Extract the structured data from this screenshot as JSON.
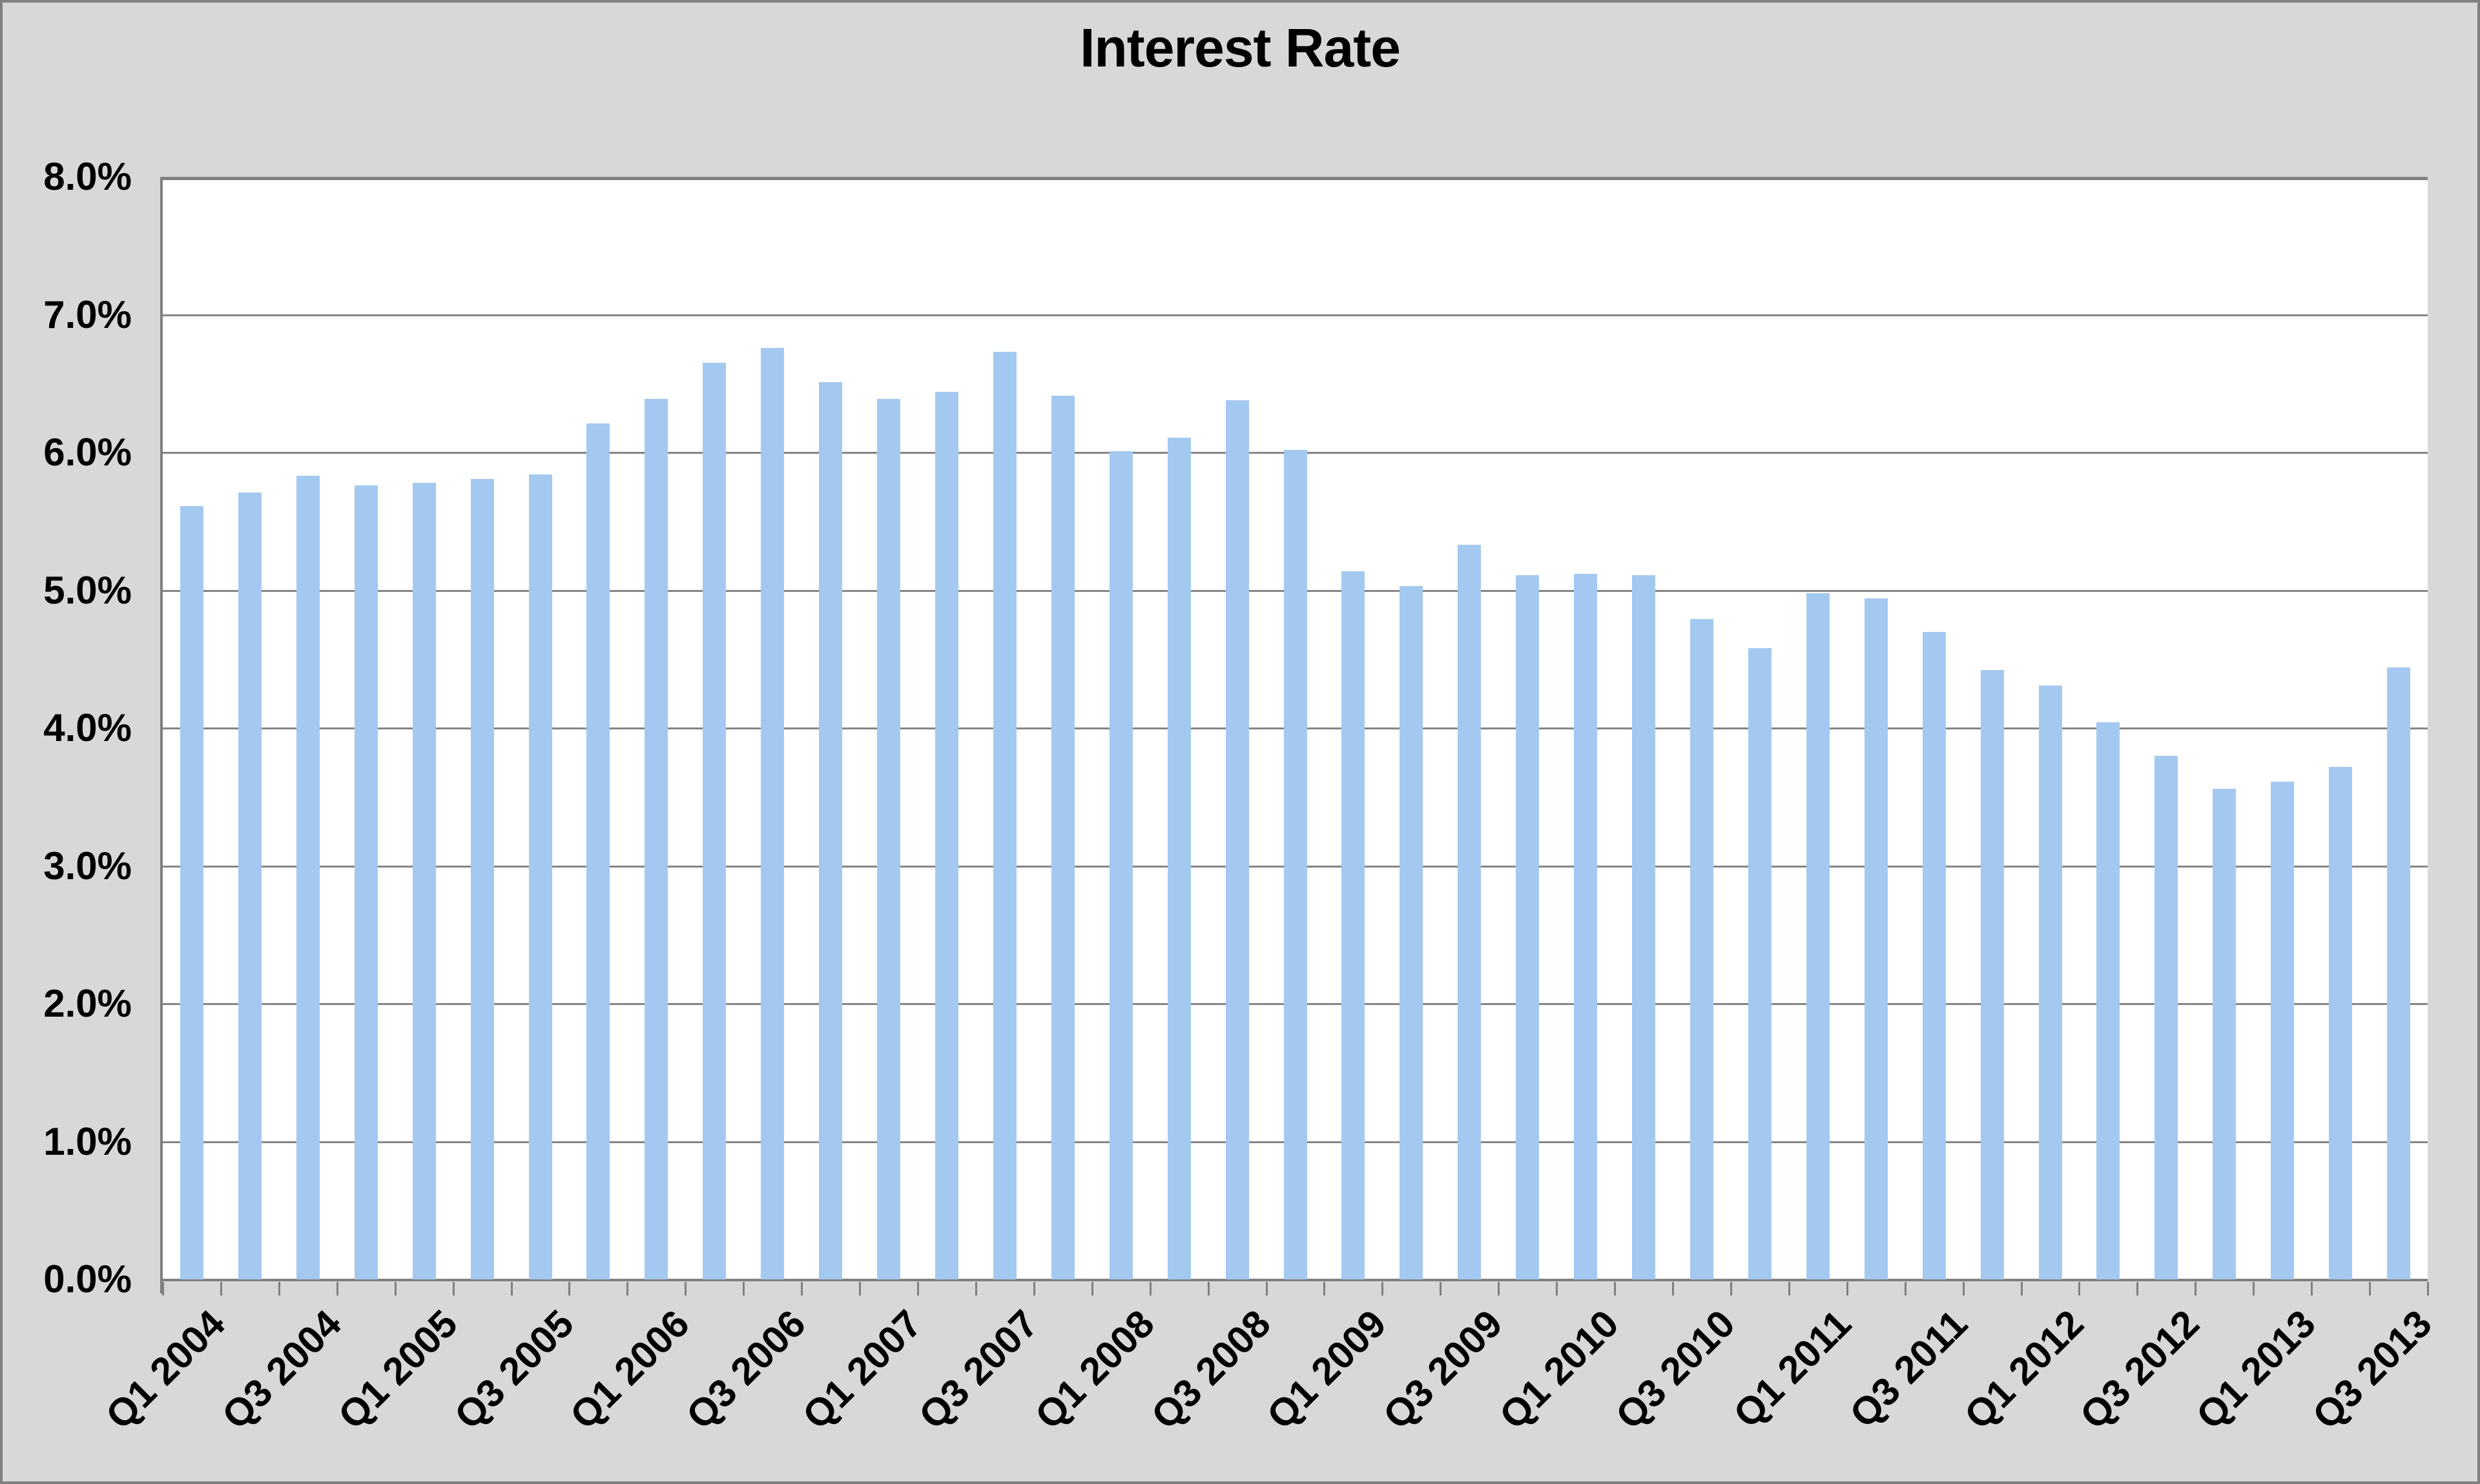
{
  "chart_data": {
    "type": "bar",
    "title": "Interest Rate",
    "categories": [
      "Q1 2004",
      "Q2 2004",
      "Q3 2004",
      "Q4 2004",
      "Q1 2005",
      "Q2 2005",
      "Q3 2005",
      "Q4 2005",
      "Q1 2006",
      "Q2 2006",
      "Q3 2006",
      "Q4 2006",
      "Q1 2007",
      "Q2 2007",
      "Q3 2007",
      "Q4 2007",
      "Q1 2008",
      "Q2 2008",
      "Q3 2008",
      "Q4 2008",
      "Q1 2009",
      "Q2 2009",
      "Q3 2009",
      "Q4 2009",
      "Q1 2010",
      "Q2 2010",
      "Q3 2010",
      "Q4 2010",
      "Q1 2011",
      "Q2 2011",
      "Q3 2011",
      "Q4 2011",
      "Q1 2012",
      "Q2 2012",
      "Q3 2012",
      "Q4 2012",
      "Q1 2013",
      "Q2 2013",
      "Q3 2013"
    ],
    "values": [
      5.61,
      5.71,
      5.83,
      5.76,
      5.78,
      5.81,
      5.84,
      6.21,
      6.39,
      6.65,
      6.76,
      6.51,
      6.39,
      6.44,
      6.73,
      6.41,
      6.01,
      6.11,
      6.38,
      6.02,
      5.14,
      5.03,
      5.33,
      5.11,
      5.12,
      5.11,
      4.79,
      4.58,
      4.98,
      4.94,
      4.7,
      4.42,
      4.31,
      4.04,
      3.8,
      3.56,
      3.61,
      3.72,
      4.44
    ],
    "x_tick_labels": [
      "Q1 2004",
      "Q3 2004",
      "Q1 2005",
      "Q3 2005",
      "Q1 2006",
      "Q3 2006",
      "Q1 2007",
      "Q3 2007",
      "Q1 2008",
      "Q3 2008",
      "Q1 2009",
      "Q3 2009",
      "Q1 2010",
      "Q3 2010",
      "Q1 2011",
      "Q3 2011",
      "Q1 2012",
      "Q3 2012",
      "Q1 2013",
      "Q3 2013"
    ],
    "x_label_every": 2,
    "y_tick_labels": [
      "8.0%",
      "7.0%",
      "6.0%",
      "5.0%",
      "4.0%",
      "3.0%",
      "2.0%",
      "1.0%",
      "0.0%"
    ],
    "ylim": [
      0,
      8
    ],
    "y_tick_step": 1.0,
    "xlabel": "",
    "ylabel": "",
    "legend": "none",
    "grid": true,
    "bar_color": "#a4c9f0",
    "gridline_color": "#858585",
    "axis_color": "#7f7f7f",
    "plot_background": "#ffffff",
    "outer_background": "#d8d8d8",
    "title_color": "#000000"
  }
}
